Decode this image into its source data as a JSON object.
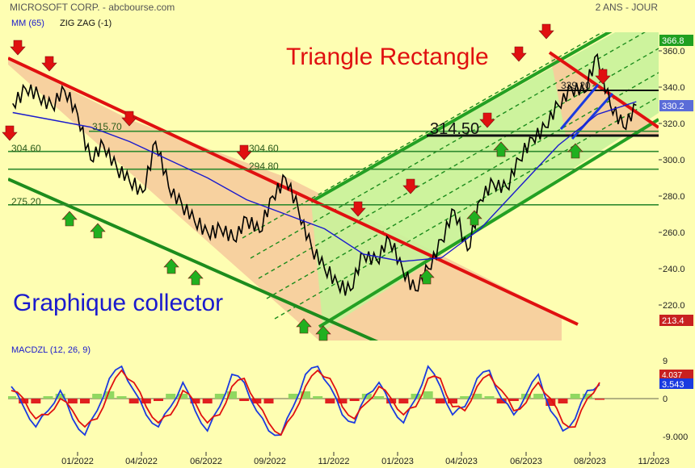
{
  "header": {
    "title": "MICROSOFT CORP. - abcbourse.com",
    "period": "2 ANS - JOUR",
    "indicator_ma": "MM (65)",
    "indicator_zz": "ZIG ZAG (-1)",
    "macd_label": "MACDZL (12, 26, 9)"
  },
  "annotations": {
    "pattern_title": "Triangle Rectangle",
    "pattern_subtitle": "Graphique collector",
    "level_big": "314.50",
    "level_top": "339.20"
  },
  "colors": {
    "background": "#fefeb2",
    "price": "#000000",
    "moving_average": "#1a1acd",
    "downtrend": "#e01010",
    "uptrend_channel": "#1d8c1d",
    "channel_fill": "#c8f09a",
    "triangle_fill": "#f5c89a",
    "down_arrow": "#e01010",
    "up_arrow": "#20b020",
    "last_price_badge": "#5a6cd8",
    "high_badge": "#20a020",
    "low_badge": "#c82020"
  },
  "chart_data": [
    {
      "type": "line",
      "title": "MICROSOFT CORP.",
      "x_ticks": [
        "01/2022",
        "04/2022",
        "06/2022",
        "09/2022",
        "11/2022",
        "01/2023",
        "04/2023",
        "06/2023",
        "08/2023",
        "11/2023"
      ],
      "y_ticks": [
        220.0,
        240.0,
        260.0,
        280.0,
        300.0,
        320.0,
        340.0,
        360.0
      ],
      "ylim": [
        205,
        372
      ],
      "y_badges": {
        "high": "366.8",
        "last": "330.2",
        "low": "213.4"
      },
      "horizontal_levels": [
        {
          "value": 315.7,
          "label": "315.70"
        },
        {
          "value": 314.5,
          "label": "314.50"
        },
        {
          "value": 304.6,
          "label": "304.60"
        },
        {
          "value": 294.8,
          "label": "294.80"
        },
        {
          "value": 275.2,
          "label": "275.20"
        },
        {
          "value": 339.2,
          "label": "339.20"
        }
      ],
      "series": [
        {
          "name": "MICROSOFT CORP.",
          "x": [
            "2021-10-25",
            "2021-11-08",
            "2021-11-22",
            "2021-12-06",
            "2021-12-20",
            "2022-01-03",
            "2022-01-17",
            "2022-01-31",
            "2022-02-14",
            "2022-02-28",
            "2022-03-14",
            "2022-03-28",
            "2022-04-11",
            "2022-04-25",
            "2022-05-09",
            "2022-05-23",
            "2022-06-06",
            "2022-06-20",
            "2022-07-04",
            "2022-07-18",
            "2022-08-01",
            "2022-08-15",
            "2022-08-29",
            "2022-09-12",
            "2022-09-26",
            "2022-10-10",
            "2022-10-24",
            "2022-11-07",
            "2022-11-21",
            "2022-12-05",
            "2022-12-19",
            "2023-01-02",
            "2023-01-16",
            "2023-01-30",
            "2023-02-13",
            "2023-02-27",
            "2023-03-13",
            "2023-03-27",
            "2023-04-10",
            "2023-04-24",
            "2023-05-08",
            "2023-05-22",
            "2023-06-05",
            "2023-06-19",
            "2023-07-03",
            "2023-07-17",
            "2023-07-31",
            "2023-08-14",
            "2023-08-28"
          ],
          "values": [
            331,
            339,
            335,
            330,
            338,
            325,
            300,
            308,
            296,
            288,
            282,
            310,
            285,
            276,
            266,
            260,
            262,
            256,
            268,
            260,
            280,
            290,
            272,
            252,
            240,
            232,
            228,
            248,
            245,
            256,
            240,
            228,
            240,
            256,
            272,
            250,
            278,
            287,
            285,
            300,
            312,
            318,
            330,
            340,
            337,
            358,
            330,
            318,
            330
          ]
        },
        {
          "name": "MM (65)",
          "x": [
            "2021-10-25",
            "2021-12-06",
            "2022-01-17",
            "2022-02-28",
            "2022-04-11",
            "2022-05-23",
            "2022-07-04",
            "2022-08-15",
            "2022-09-26",
            "2022-11-07",
            "2022-12-19",
            "2023-01-30",
            "2023-03-13",
            "2023-04-24",
            "2023-06-05",
            "2023-07-17",
            "2023-08-28"
          ],
          "values": [
            326,
            322,
            318,
            310,
            300,
            290,
            278,
            270,
            262,
            248,
            244,
            246,
            262,
            285,
            308,
            325,
            332
          ]
        }
      ]
    },
    {
      "type": "line",
      "title": "MACDZL (12, 26, 9)",
      "y_ticks": [
        9.0,
        0,
        -9.0
      ],
      "ylim": [
        -11,
        11
      ],
      "y_badges": {
        "macd": "3.543",
        "signal": "4.037"
      },
      "series": [
        {
          "name": "MACD",
          "values": [
            3,
            -2,
            -7,
            -3,
            2,
            -5,
            -9,
            -3,
            5,
            8,
            2,
            -4,
            -7,
            -2,
            4,
            -3,
            -8,
            -2,
            6,
            4,
            -3,
            -8,
            -9,
            -2,
            6,
            8,
            3,
            -4,
            -6,
            1,
            4,
            -2,
            -6,
            0,
            8,
            3,
            -4,
            -2,
            5,
            7,
            0,
            -4,
            1,
            6,
            -3,
            -8,
            -5,
            2,
            3.5
          ]
        },
        {
          "name": "Signal",
          "values": [
            2,
            0,
            -5,
            -4,
            0,
            -3,
            -7,
            -5,
            2,
            7,
            4,
            -2,
            -6,
            -4,
            2,
            -1,
            -6,
            -4,
            3,
            5,
            -1,
            -6,
            -9,
            -4,
            3,
            7,
            5,
            -2,
            -5,
            -1,
            3,
            0,
            -4,
            -2,
            5,
            5,
            -2,
            -3,
            3,
            6,
            2,
            -3,
            -1,
            4,
            0,
            -6,
            -7,
            0,
            4
          ]
        }
      ]
    }
  ]
}
